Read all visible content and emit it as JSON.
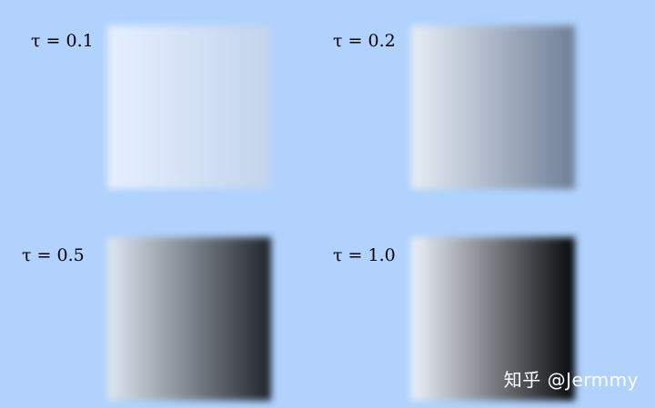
{
  "panels": [
    {
      "id": "p01",
      "label": "τ = 0.1",
      "tau": 0.1,
      "gradient_stops": [
        "#e6efff",
        "#c2d4ec"
      ]
    },
    {
      "id": "p02",
      "label": "τ = 0.2",
      "tau": 0.2,
      "gradient_stops": [
        "#e8eef6",
        "#6e7e96"
      ]
    },
    {
      "id": "p05",
      "label": "τ = 0.5",
      "tau": 0.5,
      "gradient_stops": [
        "#dfe8f3",
        "#1f232a"
      ]
    },
    {
      "id": "p10",
      "label": "τ = 1.0",
      "tau": 1.0,
      "gradient_stops": [
        "#eef3fb",
        "#05070a"
      ]
    }
  ],
  "watermark": "知乎 @Jermmy",
  "colors": {
    "background": "#b0d2fd"
  }
}
